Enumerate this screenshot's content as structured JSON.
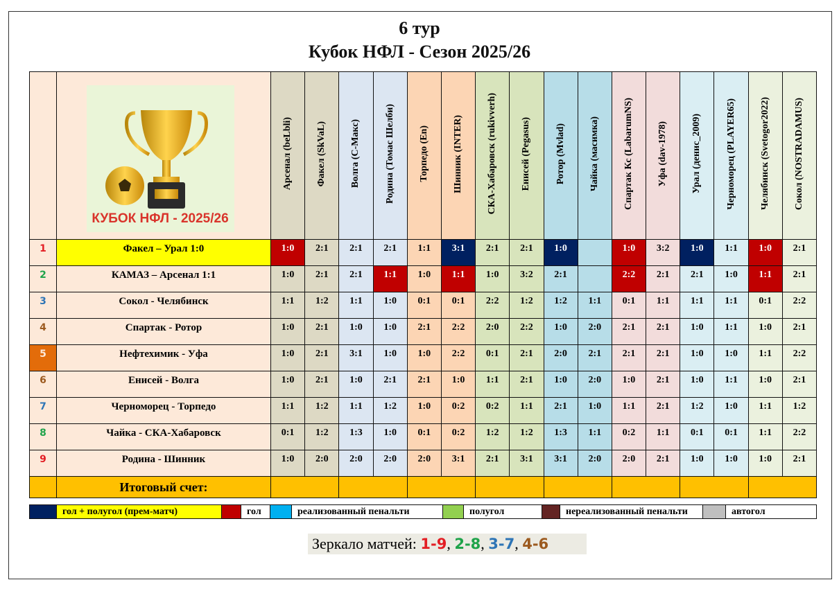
{
  "header": {
    "round": "6 тур",
    "title": "Кубок НФЛ - Сезон 2025/26"
  },
  "logo": {
    "text": "КУБОК НФЛ - 2025/26"
  },
  "colors": {
    "red": "#c00000",
    "navy": "#002060",
    "yellow": "#ffff00",
    "orange": "#ffc000",
    "match_bg": "#fde9d9"
  },
  "columns": [
    {
      "label": "Арсенал (beLbli)",
      "color": "#ddd9c4"
    },
    {
      "label": "Факел (SkVaL)",
      "color": "#ddd9c4"
    },
    {
      "label": "Волга (С-Макс)",
      "color": "#dce6f2"
    },
    {
      "label": "Родина (Томас Шелби)",
      "color": "#dce6f2"
    },
    {
      "label": "Торпедо (En)",
      "color": "#fcd5b4"
    },
    {
      "label": "Шинник (INTER)",
      "color": "#fcd5b4"
    },
    {
      "label": "СКА-Хабаровск (rukivverh)",
      "color": "#d8e4bc"
    },
    {
      "label": "Енисей (Pegasus)",
      "color": "#d8e4bc"
    },
    {
      "label": "Ротор (Mvlad)",
      "color": "#b7dde8"
    },
    {
      "label": "Чайка (масимка)",
      "color": "#b7dde8"
    },
    {
      "label": "Спартак Кс  (LabarumNS)",
      "color": "#f2dcdb"
    },
    {
      "label": "Уфа (dav-1978)",
      "color": "#f2dcdb"
    },
    {
      "label": "Урал (денис_2009)",
      "color": "#daeef3"
    },
    {
      "label": "Черноморец (PLAYER65)",
      "color": "#daeef3"
    },
    {
      "label": "Челябинск (Svetogor2022)",
      "color": "#ebf1de"
    },
    {
      "label": "Сокол (NOSTRADAMUS)",
      "color": "#ebf1de"
    }
  ],
  "rows": [
    {
      "num": "1",
      "num_color": "#e31e24",
      "match": "Факел – Урал  1:0",
      "match_bg": "#ffff00",
      "scores": [
        "1:0",
        "2:1",
        "2:1",
        "2:1",
        "1:1",
        "3:1",
        "2:1",
        "2:1",
        "1:0",
        "",
        "1:0",
        "3:2",
        "1:0",
        "1:1",
        "1:0",
        "2:1"
      ],
      "marks": [
        "goal",
        "",
        "",
        "",
        "",
        "goal_half",
        "",
        "",
        "goal_half",
        "",
        "goal",
        "",
        "goal_half",
        "",
        "goal",
        ""
      ]
    },
    {
      "num": "2",
      "num_color": "#1fa34a",
      "match": "КАМАЗ – Арсенал  1:1",
      "scores": [
        "1:0",
        "2:1",
        "2:1",
        "1:1",
        "1:0",
        "1:1",
        "1:0",
        "3:2",
        "2:1",
        "",
        "2:2",
        "2:1",
        "2:1",
        "1:0",
        "1:1",
        "2:1"
      ],
      "marks": [
        "",
        "",
        "",
        "goal",
        "",
        "goal",
        "",
        "",
        "",
        "",
        "goal",
        "",
        "",
        "",
        "goal",
        ""
      ]
    },
    {
      "num": "3",
      "num_color": "#2e75b6",
      "match": "Сокол - Челябинск",
      "scores": [
        "1:1",
        "1:2",
        "1:1",
        "1:0",
        "0:1",
        "0:1",
        "2:2",
        "1:2",
        "1:2",
        "1:1",
        "0:1",
        "1:1",
        "1:1",
        "1:1",
        "0:1",
        "2:2"
      ]
    },
    {
      "num": "4",
      "num_color": "#9c5a1f",
      "match": "Спартак - Ротор",
      "scores": [
        "1:0",
        "2:1",
        "1:0",
        "1:0",
        "2:1",
        "2:2",
        "2:0",
        "2:2",
        "1:0",
        "2:0",
        "2:1",
        "2:1",
        "1:0",
        "1:1",
        "1:0",
        "2:1"
      ]
    },
    {
      "num": "5",
      "num_color": "#fde9d9",
      "num_bg": "#e36c0a",
      "match": "Нефтехимик - Уфа",
      "scores": [
        "1:0",
        "2:1",
        "3:1",
        "1:0",
        "1:0",
        "2:2",
        "0:1",
        "2:1",
        "2:0",
        "2:1",
        "2:1",
        "2:1",
        "1:0",
        "1:0",
        "1:1",
        "2:2"
      ]
    },
    {
      "num": "6",
      "num_color": "#9c5a1f",
      "match": "Енисей - Волга",
      "scores": [
        "1:0",
        "2:1",
        "1:0",
        "2:1",
        "2:1",
        "1:0",
        "1:1",
        "2:1",
        "1:0",
        "2:0",
        "1:0",
        "2:1",
        "1:0",
        "1:1",
        "1:0",
        "2:1"
      ]
    },
    {
      "num": "7",
      "num_color": "#2e75b6",
      "match": "Черноморец - Торпедо",
      "scores": [
        "1:1",
        "1:2",
        "1:1",
        "1:2",
        "1:0",
        "0:2",
        "0:2",
        "1:1",
        "2:1",
        "1:0",
        "1:1",
        "2:1",
        "1:2",
        "1:0",
        "1:1",
        "1:2"
      ]
    },
    {
      "num": "8",
      "num_color": "#1fa34a",
      "match": "Чайка - СКА-Хабаровск",
      "scores": [
        "0:1",
        "1:2",
        "1:3",
        "1:0",
        "0:1",
        "0:2",
        "1:2",
        "1:2",
        "1:3",
        "1:1",
        "0:2",
        "1:1",
        "0:1",
        "0:1",
        "1:1",
        "2:2"
      ]
    },
    {
      "num": "9",
      "num_color": "#e31e24",
      "match": "Родина - Шинник",
      "scores": [
        "1:0",
        "2:0",
        "2:0",
        "2:0",
        "2:0",
        "3:1",
        "2:1",
        "3:1",
        "3:1",
        "2:0",
        "2:0",
        "2:1",
        "1:0",
        "1:0",
        "1:0",
        "2:1"
      ]
    }
  ],
  "total": {
    "label": "Итоговый счет:",
    "values": [
      "",
      "",
      "",
      "",
      "",
      "",
      "",
      ""
    ]
  },
  "legend": [
    {
      "color": "#002060",
      "label": "гол + полугол  (прем-матч)",
      "label_bg": "#ffff00"
    },
    {
      "color": "#c00000",
      "label": "гол"
    },
    {
      "color": "#00b0f0",
      "label": "реализованный  пенальти"
    },
    {
      "color": "#92d050",
      "label": "полугол"
    },
    {
      "color": "#632423",
      "label": "нереализованный пенальти"
    },
    {
      "color": "#bfbfbf",
      "label": "автогол"
    }
  ],
  "mirror": {
    "label": "Зеркало матчей: ",
    "pairs": [
      {
        "text": "1-9",
        "color": "#e31e24"
      },
      {
        "text": "2-8",
        "color": "#1fa34a"
      },
      {
        "text": "3-7",
        "color": "#2e75b6"
      },
      {
        "text": "4-6",
        "color": "#9c5a1f"
      }
    ]
  }
}
